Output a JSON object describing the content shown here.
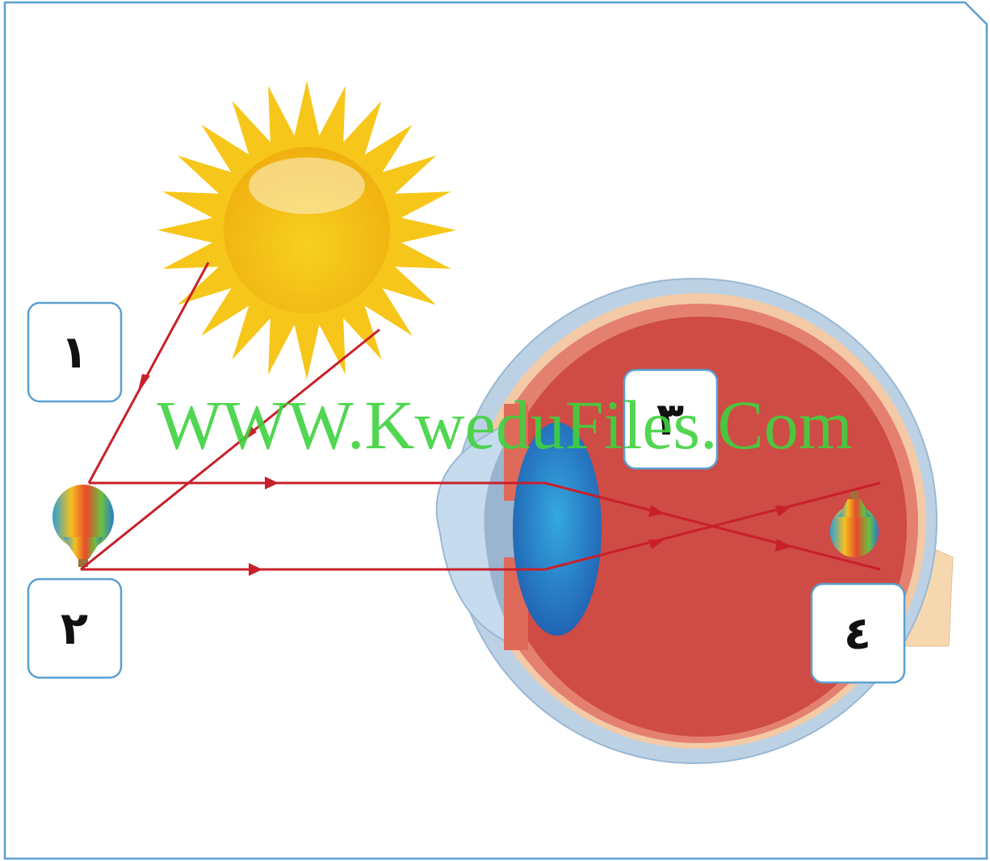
{
  "labels": [
    "١",
    "٢",
    "٣",
    "٤"
  ],
  "watermark": "WWW.KweduFiles.Com"
}
